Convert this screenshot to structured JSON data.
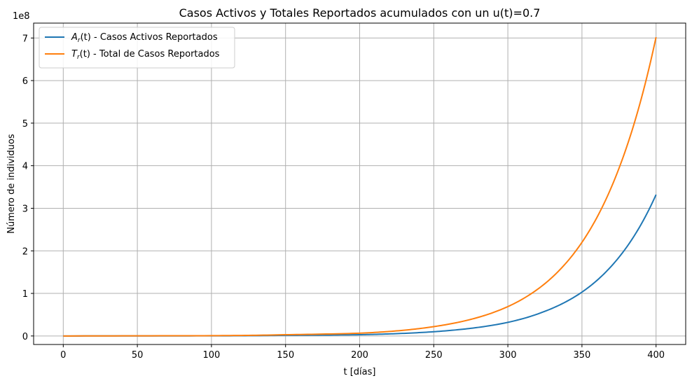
{
  "chart_data": {
    "type": "line",
    "title": "Casos Activos y Totales Reportados acumulados con un u(t)=0.7",
    "xlabel": "t [días]",
    "ylabel": "Número de individuos",
    "y_offset_label": "1e8",
    "xlim": [
      -20,
      420
    ],
    "ylim": [
      -0.2,
      7.35
    ],
    "y_scale_factor": 100000000,
    "x_ticks": [
      0,
      50,
      100,
      150,
      200,
      250,
      300,
      350,
      400
    ],
    "y_ticks": [
      0,
      1,
      2,
      3,
      4,
      5,
      6,
      7
    ],
    "grid": true,
    "legend_position": "upper left",
    "series": [
      {
        "name": "Casos Activos Reportados",
        "legend_math": "A",
        "legend_math_sub": "r",
        "legend_math_arg": "(t)",
        "legend_rest": " - Casos Activos Reportados",
        "color": "#1f77b4",
        "x": [
          0,
          100,
          150,
          200,
          225,
          250,
          275,
          300,
          325,
          350,
          375,
          400
        ],
        "values": [
          0.0,
          0.003,
          0.015,
          0.03,
          0.055,
          0.1,
          0.18,
          0.32,
          0.58,
          1.03,
          1.85,
          3.32
        ]
      },
      {
        "name": "Total de Casos Reportados",
        "legend_math": "T",
        "legend_math_sub": "r",
        "legend_math_arg": "(t)",
        "legend_rest": " - Total de Casos Reportados",
        "color": "#ff7f0e",
        "x": [
          0,
          100,
          150,
          200,
          225,
          250,
          275,
          300,
          325,
          350,
          375,
          400
        ],
        "values": [
          0.0,
          0.007,
          0.03,
          0.065,
          0.12,
          0.22,
          0.39,
          0.69,
          1.23,
          2.2,
          3.94,
          7.02
        ]
      }
    ]
  }
}
